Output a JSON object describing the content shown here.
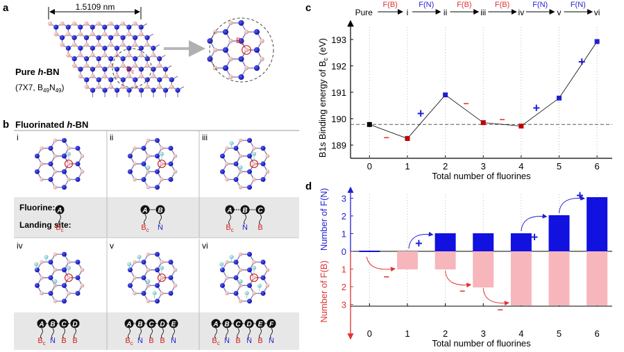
{
  "panels": {
    "a": {
      "letter": "a",
      "scale_bar": "1.5109 nm",
      "title_pre": "Pure ",
      "title_h": "h",
      "title_post": "-BN",
      "formula_pre": "(7X7, B",
      "formula_b_sub": "49",
      "formula_mid": "N",
      "formula_n_sub": "49",
      "formula_end": ")",
      "site_main": "B",
      "site_sub": "c"
    },
    "b": {
      "letter": "b",
      "title_pre": "Fluorinated ",
      "title_h": "h",
      "title_post": "-BN",
      "fluorine_label": "Fluorine:",
      "landing_label": "Landing site:",
      "configs": [
        {
          "roman": "i",
          "fluorines": [
            "A"
          ],
          "sites": [
            "Bc"
          ]
        },
        {
          "roman": "ii",
          "fluorines": [
            "A",
            "B"
          ],
          "sites": [
            "Bc",
            "N"
          ]
        },
        {
          "roman": "iii",
          "fluorines": [
            "A",
            "B",
            "C"
          ],
          "sites": [
            "Bc",
            "N",
            "B"
          ]
        },
        {
          "roman": "iv",
          "fluorines": [
            "A",
            "B",
            "C",
            "D"
          ],
          "sites": [
            "Bc",
            "N",
            "B",
            "B"
          ]
        },
        {
          "roman": "v",
          "fluorines": [
            "A",
            "B",
            "C",
            "D",
            "E"
          ],
          "sites": [
            "Bc",
            "N",
            "B",
            "B",
            "N"
          ]
        },
        {
          "roman": "vi",
          "fluorines": [
            "A",
            "B",
            "C",
            "D",
            "E",
            "F"
          ],
          "sites": [
            "Bc",
            "N",
            "B",
            "N",
            "B",
            "N"
          ]
        }
      ],
      "bc_label": "B",
      "bc_sub": "c"
    },
    "c": {
      "letter": "c"
    },
    "d": {
      "letter": "d"
    }
  },
  "chart_data": [
    {
      "type": "line",
      "title": "",
      "xlabel": "Total number of fluorines",
      "ylabel_pre": "B1s  Binding energy of B",
      "ylabel_sub": "c",
      "ylabel_post": " (eV)",
      "x": [
        0,
        1,
        2,
        3,
        4,
        5,
        6
      ],
      "y": [
        189.78,
        189.25,
        190.9,
        189.85,
        189.72,
        190.78,
        192.92
      ],
      "xlim": [
        -0.5,
        6.4
      ],
      "ylim": [
        188.5,
        193.6
      ],
      "xticks": [
        "0",
        "1",
        "2",
        "3",
        "4",
        "5",
        "6"
      ],
      "yticks": [
        "189",
        "190",
        "191",
        "192",
        "193"
      ],
      "reference_line": 189.78,
      "point_colors": [
        "#000000",
        "#c00000",
        "#1f1fd1",
        "#c00000",
        "#c00000",
        "#1f1fd1",
        "#1f1fd1"
      ],
      "top_states": [
        "Pure",
        "i",
        "ii",
        "iii",
        "iv",
        "v",
        "vi"
      ],
      "top_steps": [
        {
          "label": "F(B)",
          "color": "#e03030"
        },
        {
          "label": "F(N)",
          "color": "#1f1fd1"
        },
        {
          "label": "F(B)",
          "color": "#e03030"
        },
        {
          "label": "F(B)",
          "color": "#e03030"
        },
        {
          "label": "F(N)",
          "color": "#1f1fd1"
        },
        {
          "label": "F(N)",
          "color": "#1f1fd1"
        }
      ],
      "annotations": [
        {
          "sign": "−",
          "x": 0.45,
          "y": 189.32,
          "color": "#e03030"
        },
        {
          "sign": "+",
          "x": 1.35,
          "y": 190.2,
          "color": "#1f1fd1"
        },
        {
          "sign": "−",
          "x": 2.55,
          "y": 190.6,
          "color": "#e03030"
        },
        {
          "sign": "−",
          "x": 3.5,
          "y": 190.0,
          "color": "#e03030"
        },
        {
          "sign": "+",
          "x": 4.4,
          "y": 190.4,
          "color": "#1f1fd1"
        },
        {
          "sign": "+",
          "x": 5.6,
          "y": 192.15,
          "color": "#1f1fd1"
        }
      ]
    },
    {
      "type": "bar",
      "title": "",
      "xlabel": "Total number of fluorines",
      "ylabel_top": "Number of F(N)",
      "ylabel_bottom": "Number of F(B)",
      "categories": [
        "0",
        "1",
        "2",
        "3",
        "4",
        "5",
        "6"
      ],
      "series": [
        {
          "name": "F(N)",
          "values": [
            0,
            0,
            1,
            1,
            1,
            2,
            3
          ],
          "color": "#1111e0"
        },
        {
          "name": "F(B)",
          "values": [
            0,
            1,
            1,
            2,
            3,
            3,
            3
          ],
          "color": "#f7b6bb"
        }
      ],
      "yticks_top": [
        "0",
        "1",
        "2",
        "3"
      ],
      "yticks_bottom": [
        "1",
        "2",
        "3"
      ],
      "ylim_top": [
        0,
        3.6
      ],
      "ylim_bottom": [
        0,
        3.6
      ],
      "annotations": [
        {
          "sign": "−",
          "x": 0.45,
          "y": -1.4,
          "color": "#e03030"
        },
        {
          "sign": "+",
          "x": 1.3,
          "y": 0.45,
          "color": "#1f1fd1"
        },
        {
          "sign": "−",
          "x": 2.45,
          "y": -2.2,
          "color": "#e03030"
        },
        {
          "sign": "−",
          "x": 3.45,
          "y": -3.25,
          "color": "#e03030"
        },
        {
          "sign": "+",
          "x": 4.35,
          "y": 0.8,
          "color": "#1f1fd1"
        },
        {
          "sign": "+",
          "x": 5.55,
          "y": 3.15,
          "color": "#1f1fd1"
        }
      ]
    }
  ]
}
